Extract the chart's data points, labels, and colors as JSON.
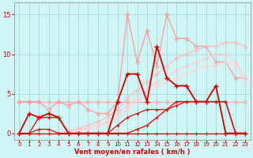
{
  "x": [
    0,
    1,
    2,
    3,
    4,
    5,
    6,
    7,
    8,
    9,
    10,
    11,
    12,
    13,
    14,
    15,
    16,
    17,
    18,
    19,
    20,
    21,
    22,
    23
  ],
  "series": [
    {
      "comment": "flat pink line around y=4",
      "color": "#ffaaaa",
      "lw": 0.9,
      "marker": "D",
      "ms": 2.5,
      "mew": 0.7,
      "y": [
        4,
        4,
        4,
        4,
        4,
        4,
        4,
        4,
        4,
        4,
        4,
        4,
        4,
        4,
        4,
        4,
        4,
        4,
        4,
        4,
        4,
        4,
        4,
        4
      ]
    },
    {
      "comment": "light pink jagged high peaks",
      "color": "#ff9999",
      "lw": 0.9,
      "marker": "D",
      "ms": 2.5,
      "mew": 0.7,
      "y": [
        4,
        4,
        4,
        3,
        4,
        3.5,
        4,
        3,
        2.5,
        2.5,
        4,
        15,
        9,
        13,
        8.5,
        15,
        12,
        12,
        11,
        11,
        9,
        9,
        7,
        7
      ]
    },
    {
      "comment": "light diagonal rising line 1 (steeper)",
      "color": "#ffbbbb",
      "lw": 0.9,
      "marker": "D",
      "ms": 2.5,
      "mew": 0.7,
      "y": [
        0,
        0,
        0,
        0,
        0,
        0.3,
        0.6,
        1,
        1.5,
        2,
        3,
        4.5,
        5.5,
        6.5,
        7.5,
        8.5,
        9.5,
        10,
        10.5,
        11,
        11,
        11.5,
        11.5,
        11
      ]
    },
    {
      "comment": "light diagonal rising line 2 (shallower)",
      "color": "#ffcccc",
      "lw": 0.9,
      "marker": "D",
      "ms": 2.5,
      "mew": 0.7,
      "y": [
        0,
        0,
        0,
        0,
        0,
        0.2,
        0.4,
        0.7,
        1,
        1.5,
        2.5,
        3.5,
        4.5,
        5.5,
        6.5,
        7,
        8,
        8.5,
        9,
        9.5,
        10,
        10,
        9,
        7
      ]
    },
    {
      "comment": "lightest diagonal line 3 (shallowest)",
      "color": "#ffd5d5",
      "lw": 0.9,
      "marker": "D",
      "ms": 2.5,
      "mew": 0.7,
      "y": [
        0,
        0,
        0,
        0,
        0,
        0.1,
        0.3,
        0.5,
        0.8,
        1.2,
        2,
        3,
        4,
        5,
        6,
        6.5,
        7,
        7.5,
        8,
        8.5,
        8.5,
        9,
        8.5,
        6.5
      ]
    },
    {
      "comment": "dark red spiky main line",
      "color": "#cc0000",
      "lw": 1.3,
      "marker": "+",
      "ms": 4.5,
      "mew": 1.0,
      "y": [
        0,
        2.5,
        2,
        2.5,
        2,
        0,
        0,
        0,
        0,
        0,
        4,
        7.5,
        7.5,
        4,
        11,
        7,
        6,
        6,
        4,
        4,
        6,
        0,
        0,
        0
      ]
    },
    {
      "comment": "dark red line 2 low",
      "color": "#dd1111",
      "lw": 1.0,
      "marker": "+",
      "ms": 3.5,
      "mew": 0.8,
      "y": [
        0,
        0,
        2,
        2,
        2,
        0,
        0,
        0,
        0,
        0,
        0,
        0,
        0.5,
        1,
        2,
        3,
        4,
        4,
        4,
        4,
        4,
        4,
        0,
        0
      ]
    },
    {
      "comment": "dark red near zero line",
      "color": "#bb0000",
      "lw": 0.9,
      "marker": "+",
      "ms": 3.5,
      "mew": 0.8,
      "y": [
        0,
        0,
        0,
        0,
        0,
        0,
        0,
        0,
        0,
        0,
        0,
        0,
        0,
        0,
        0,
        0,
        0,
        0,
        0,
        0,
        0,
        0,
        0,
        0
      ]
    },
    {
      "comment": "dark red near zero line 2",
      "color": "#cc1111",
      "lw": 0.9,
      "marker": "+",
      "ms": 3.5,
      "mew": 0.8,
      "y": [
        0,
        0,
        0.5,
        0.5,
        0,
        0,
        0,
        0,
        0,
        0,
        1,
        2,
        2.5,
        3,
        3,
        3,
        3.5,
        4,
        4,
        4,
        4,
        4,
        0,
        0
      ]
    }
  ],
  "xlim": [
    -0.5,
    23.5
  ],
  "ylim": [
    -0.8,
    16.5
  ],
  "yticks": [
    0,
    5,
    10,
    15
  ],
  "xticks": [
    0,
    1,
    2,
    3,
    4,
    5,
    6,
    7,
    8,
    9,
    10,
    11,
    12,
    13,
    14,
    15,
    16,
    17,
    18,
    19,
    20,
    21,
    22,
    23
  ],
  "xlabel": "Vent moyen/en rafales ( km/h )",
  "bg_color": "#cff5f5",
  "grid_color": "#a8dede"
}
